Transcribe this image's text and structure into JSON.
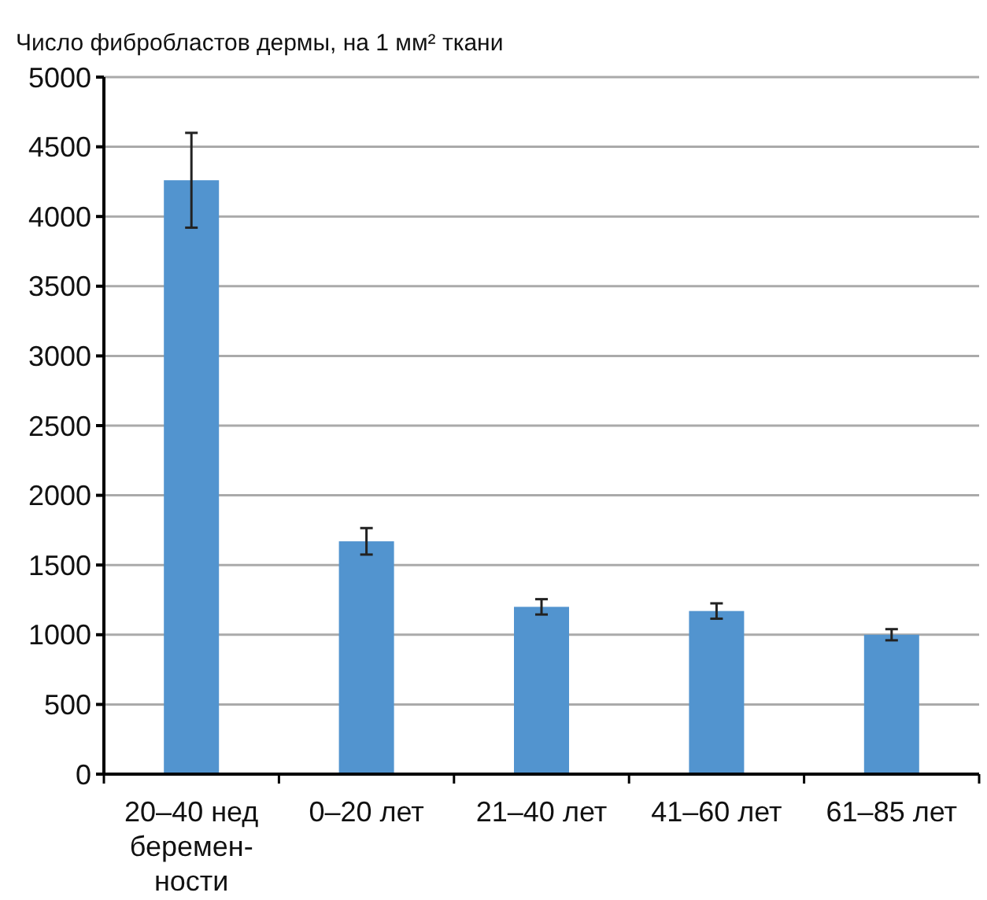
{
  "chart_data": {
    "type": "bar",
    "title": "Число фибробластов дермы, на 1 мм² ткани",
    "categories": [
      "20–40 нед\nберемен-\nности",
      "0–20 лет",
      "21–40 лет",
      "41–60 лет",
      "61–85 лет"
    ],
    "values": [
      4260,
      1670,
      1200,
      1170,
      1000
    ],
    "errors": [
      340,
      95,
      55,
      55,
      40
    ],
    "color": "#5294cf",
    "ylim": [
      0,
      5000
    ],
    "yticks": [
      0,
      500,
      1000,
      1500,
      2000,
      2500,
      3000,
      3500,
      4000,
      4500,
      5000
    ],
    "grid": "y"
  }
}
